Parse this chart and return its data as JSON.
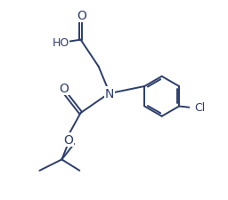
{
  "bg_color": "#ffffff",
  "line_color": "#2b3d6b",
  "text_color": "#2b3d6b",
  "line_width": 1.4,
  "font_size": 9,
  "figsize": [
    2.56,
    2.26
  ],
  "dpi": 100,
  "xlim": [
    0,
    10
  ],
  "ylim": [
    0,
    9
  ]
}
